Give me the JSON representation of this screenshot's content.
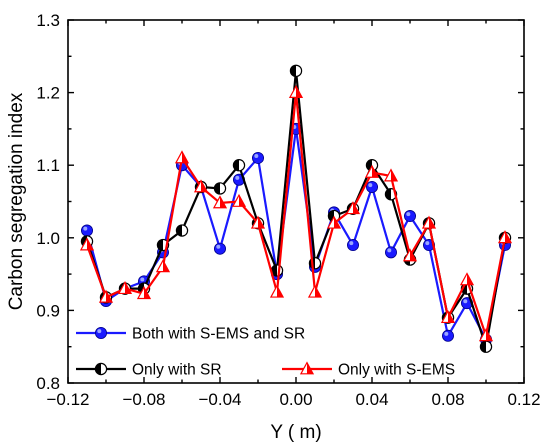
{
  "chart_data": {
    "type": "line",
    "xlabel": "Y (   m)",
    "ylabel": "Carbon segregation index",
    "xlim": [
      -0.12,
      0.12
    ],
    "ylim": [
      0.8,
      1.3
    ],
    "xticks": [
      -0.12,
      -0.08,
      -0.04,
      0.0,
      0.04,
      0.08,
      0.12
    ],
    "xtick_labels": [
      "−0.12",
      "−0.08",
      "−0.04",
      "0.00",
      "0.04",
      "0.08",
      "0.12"
    ],
    "yticks": [
      0.8,
      0.9,
      1.0,
      1.1,
      1.2,
      1.3
    ],
    "ytick_labels": [
      "0.8",
      "0.9",
      "1.0",
      "1.1",
      "1.2",
      "1.3"
    ],
    "grid": false,
    "legend_position": "bottom-left",
    "series": [
      {
        "name": "Both with S-EMS and SR",
        "color": "#1a1aff",
        "marker": "circle",
        "points": [
          [
            -0.11,
            1.01
          ],
          [
            -0.1,
            0.913
          ],
          [
            -0.09,
            0.93
          ],
          [
            -0.08,
            0.94
          ],
          [
            -0.07,
            0.98
          ],
          [
            -0.06,
            1.1
          ],
          [
            -0.05,
            1.07
          ],
          [
            -0.04,
            0.985
          ],
          [
            -0.03,
            1.08
          ],
          [
            -0.02,
            1.11
          ],
          [
            -0.01,
            0.95
          ],
          [
            0.0,
            1.15
          ],
          [
            0.01,
            0.96
          ],
          [
            0.02,
            1.035
          ],
          [
            0.03,
            0.99
          ],
          [
            0.04,
            1.07
          ],
          [
            0.05,
            0.98
          ],
          [
            0.06,
            1.03
          ],
          [
            0.07,
            0.99
          ],
          [
            0.08,
            0.865
          ],
          [
            0.09,
            0.91
          ],
          [
            0.1,
            0.86
          ],
          [
            0.11,
            0.99
          ]
        ]
      },
      {
        "name": "Only with SR",
        "color": "#000000",
        "marker": "half-circle",
        "points": [
          [
            -0.11,
            0.995
          ],
          [
            -0.1,
            0.918
          ],
          [
            -0.09,
            0.93
          ],
          [
            -0.08,
            0.93
          ],
          [
            -0.07,
            0.99
          ],
          [
            -0.06,
            1.01
          ],
          [
            -0.05,
            1.07
          ],
          [
            -0.04,
            1.068
          ],
          [
            -0.03,
            1.1
          ],
          [
            -0.02,
            1.02
          ],
          [
            -0.01,
            0.955
          ],
          [
            0.0,
            1.23
          ],
          [
            0.01,
            0.965
          ],
          [
            0.02,
            1.03
          ],
          [
            0.03,
            1.04
          ],
          [
            0.04,
            1.1
          ],
          [
            0.05,
            1.06
          ],
          [
            0.06,
            0.97
          ],
          [
            0.07,
            1.02
          ],
          [
            0.08,
            0.89
          ],
          [
            0.09,
            0.93
          ],
          [
            0.1,
            0.85
          ],
          [
            0.11,
            1.0
          ]
        ]
      },
      {
        "name": "Only with S-EMS",
        "color": "#ff0000",
        "marker": "triangle",
        "points": [
          [
            -0.11,
            0.99
          ],
          [
            -0.1,
            0.918
          ],
          [
            -0.09,
            0.93
          ],
          [
            -0.08,
            0.923
          ],
          [
            -0.07,
            0.96
          ],
          [
            -0.06,
            1.11
          ],
          [
            -0.05,
            1.07
          ],
          [
            -0.04,
            1.048
          ],
          [
            -0.03,
            1.05
          ],
          [
            -0.02,
            1.02
          ],
          [
            -0.01,
            0.925
          ],
          [
            0.0,
            1.2
          ],
          [
            0.01,
            0.925
          ],
          [
            0.02,
            1.02
          ],
          [
            0.03,
            1.04
          ],
          [
            0.04,
            1.09
          ],
          [
            0.05,
            1.085
          ],
          [
            0.06,
            0.975
          ],
          [
            0.07,
            1.02
          ],
          [
            0.08,
            0.89
          ],
          [
            0.09,
            0.942
          ],
          [
            0.1,
            0.865
          ],
          [
            0.11,
            1.0
          ]
        ]
      }
    ]
  }
}
